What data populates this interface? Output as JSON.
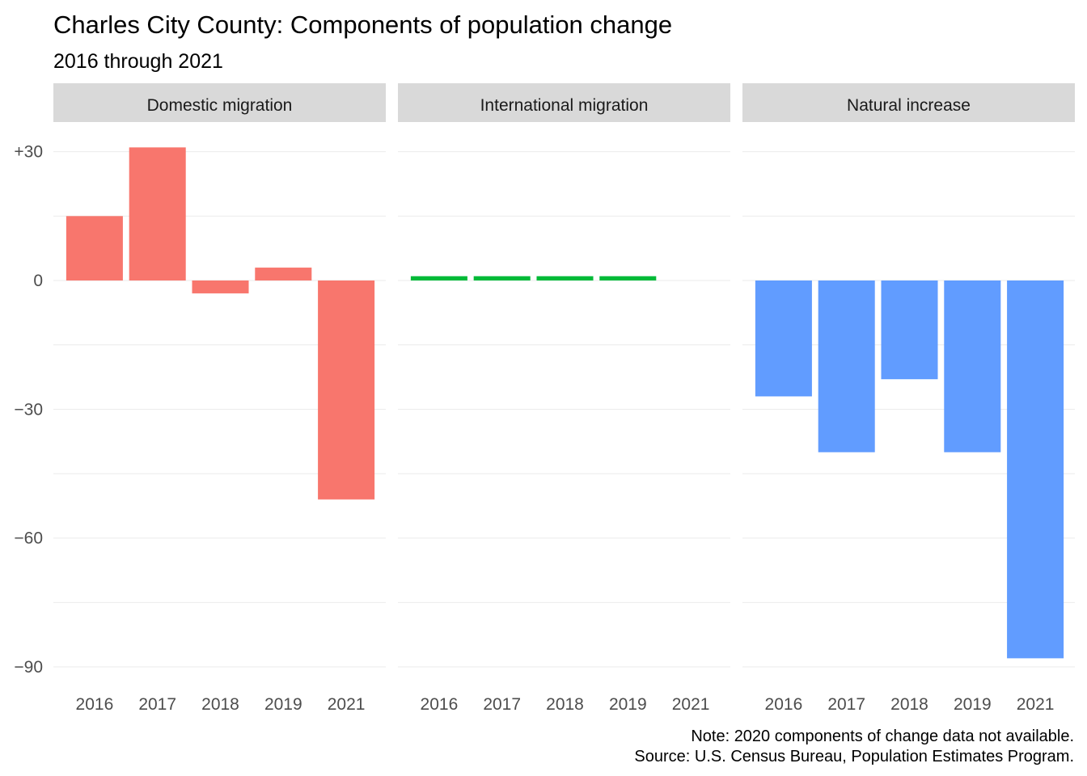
{
  "chart_data": {
    "type": "bar",
    "title": "Charles City County: Components of population change",
    "subtitle": "2016 through 2021",
    "xlabel": "",
    "ylabel": "",
    "categories": [
      "2016",
      "2017",
      "2018",
      "2019",
      "2021"
    ],
    "y_ticks": [
      30,
      0,
      -30,
      -60,
      -90
    ],
    "y_tick_labels": [
      "+30",
      "0",
      "−30",
      "−60",
      "−90"
    ],
    "ylim": [
      -92,
      33
    ],
    "grid": true,
    "legend": "none",
    "panels": [
      {
        "name": "Domestic migration",
        "color": "#F8766D",
        "values": [
          15,
          31,
          -3,
          3,
          -51
        ]
      },
      {
        "name": "International migration",
        "color": "#00BA38",
        "values": [
          1,
          1,
          1,
          1,
          null
        ]
      },
      {
        "name": "Natural increase",
        "color": "#619CFF",
        "values": [
          -27,
          -40,
          -23,
          -40,
          -88
        ]
      }
    ],
    "caption": [
      "Note: 2020 components of change data not available.",
      "Source: U.S. Census Bureau, Population Estimates Program."
    ]
  }
}
